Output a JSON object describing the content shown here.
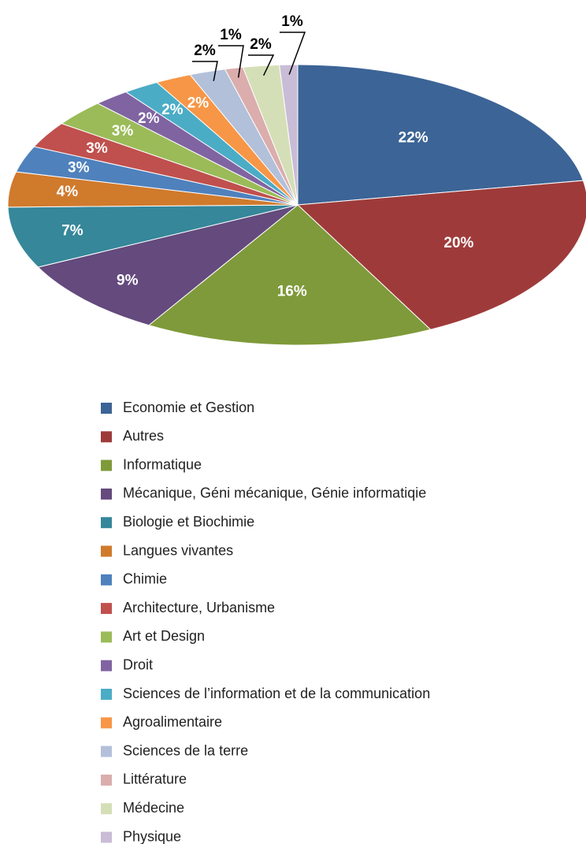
{
  "chart_data": {
    "type": "pie",
    "categories": [
      "Economie et Gestion",
      "Autres",
      "Informatique",
      "Mécanique, Géni mécanique, Génie informatiqie",
      "Biologie et Biochimie",
      "Langues vivantes",
      "Chimie",
      "Architecture, Urbanisme",
      "Art et Design",
      "Droit",
      "Sciences de l’information et de la communication",
      "Agroalimentaire",
      "Sciences de la terre",
      "Littérature",
      "Médecine",
      "Physique"
    ],
    "values": [
      22,
      20,
      16,
      9,
      7,
      4,
      3,
      3,
      3,
      2,
      2,
      2,
      2,
      1,
      2,
      1
    ],
    "value_labels": [
      "22%",
      "20%",
      "16%",
      "9%",
      "7%",
      "4%",
      "3%",
      "3%",
      "3%",
      "2%",
      "2%",
      "2%",
      "2%",
      "1%",
      "2%",
      "1%"
    ],
    "colors": [
      "#3c6496",
      "#9e3b3a",
      "#7f9a3a",
      "#644a7d",
      "#36879a",
      "#d07a2c",
      "#4f81bd",
      "#c0504d",
      "#9bbb59",
      "#8064a2",
      "#4bacc6",
      "#f79646",
      "#b3c0da",
      "#dbadad",
      "#d5dfb7",
      "#c9bcd6"
    ],
    "legend": "bottom"
  }
}
